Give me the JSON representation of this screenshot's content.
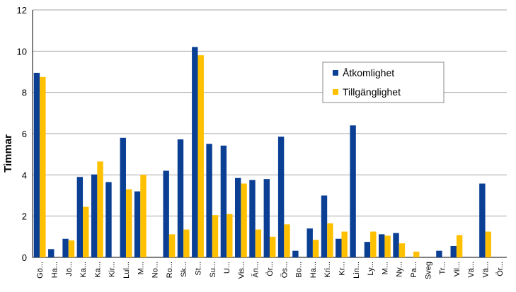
{
  "chart_data": {
    "type": "bar",
    "ylabel": "Timmar",
    "ylim": [
      0,
      12
    ],
    "yticks": [
      0,
      2,
      4,
      6,
      8,
      10,
      12
    ],
    "grid": true,
    "legend_position": "top-right",
    "categories": [
      "Gö...",
      "Ha...",
      "Jö...",
      "Ka...",
      "Ka...",
      "Kir...",
      "Lul...",
      "M...",
      "No...",
      "Ro...",
      "Sk...",
      "St...",
      "Su...",
      "U...",
      "Vis...",
      "Än...",
      "Ör...",
      "Ös...",
      "Bo...",
      "Ha...",
      "Kri...",
      "Kr...",
      "Lin...",
      "Ly...",
      "M...",
      "Ny...",
      "Pa...",
      "Sveg",
      "Tr...",
      "Vil...",
      "Vä...",
      "Vä...",
      "Ör..."
    ],
    "series": [
      {
        "name": "Åtkomlighet",
        "color": "#0b3f94",
        "values": [
          8.95,
          0.4,
          0.9,
          3.9,
          4.02,
          3.65,
          5.8,
          3.2,
          0,
          4.2,
          5.72,
          10.2,
          5.5,
          5.42,
          3.85,
          3.75,
          3.8,
          5.85,
          0.32,
          1.4,
          3.0,
          0.9,
          6.4,
          0.75,
          1.12,
          1.18,
          0,
          0,
          0.32,
          0.55,
          0,
          3.58,
          0
        ]
      },
      {
        "name": "Tillgänglighet",
        "color": "#ffc000",
        "values": [
          8.75,
          0,
          0.82,
          2.45,
          4.65,
          0,
          3.3,
          4.0,
          0,
          1.12,
          1.35,
          9.8,
          2.05,
          2.1,
          3.58,
          1.35,
          1.0,
          1.6,
          0,
          0.85,
          1.65,
          1.25,
          0,
          1.25,
          1.05,
          0.68,
          0.28,
          0,
          0,
          1.08,
          0,
          1.25,
          0
        ]
      }
    ]
  }
}
